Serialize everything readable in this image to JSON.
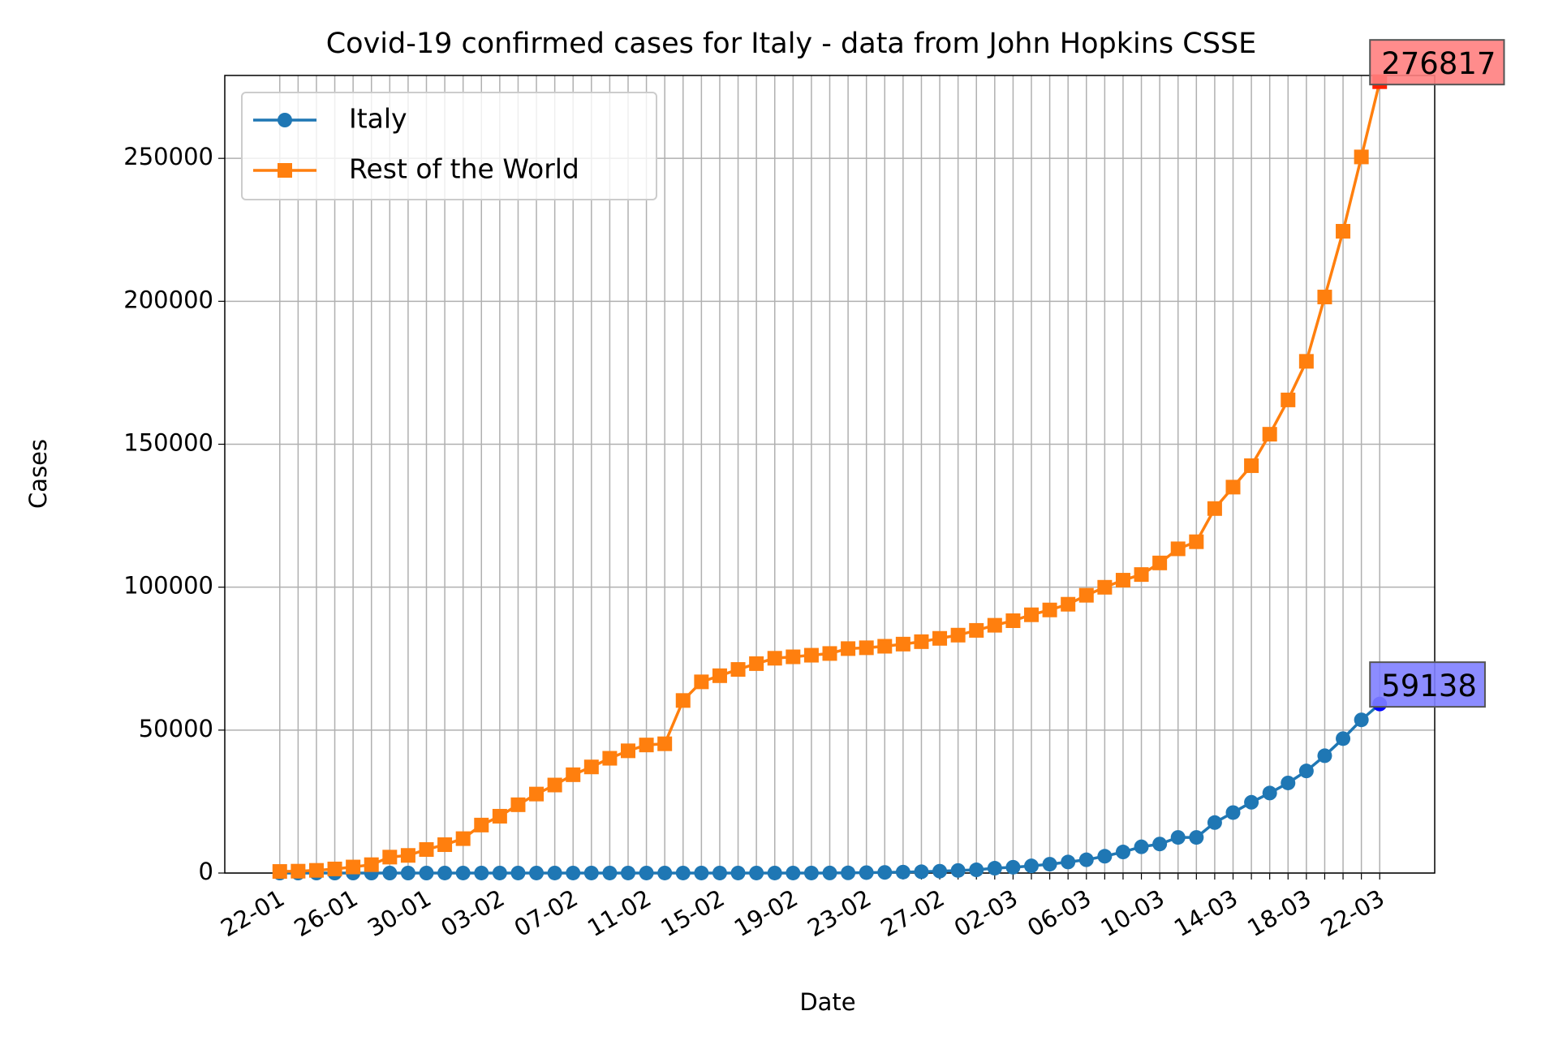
{
  "chart_data": {
    "type": "line",
    "title": "Covid-19 confirmed cases for Italy - data from John Hopkins CSSE",
    "x_label": "Date",
    "y_label": "Cases",
    "categories": [
      "22-01",
      null,
      null,
      null,
      "26-01",
      null,
      null,
      null,
      "30-01",
      null,
      null,
      null,
      "03-02",
      null,
      null,
      null,
      "07-02",
      null,
      null,
      null,
      "11-02",
      null,
      null,
      null,
      "15-02",
      null,
      null,
      null,
      "19-02",
      null,
      null,
      null,
      "23-02",
      null,
      null,
      null,
      "27-02",
      null,
      null,
      null,
      "02-03",
      null,
      null,
      null,
      "06-03",
      null,
      null,
      null,
      "10-03",
      null,
      null,
      null,
      "14-03",
      null,
      null,
      null,
      "18-03",
      null,
      null,
      null,
      "22-03"
    ],
    "series": [
      {
        "name": "Italy",
        "color": "#1f77b4",
        "marker": "circle",
        "highlight_color": "#0000ff",
        "annotation_color": "#8080ff",
        "annotation": 59138,
        "values": [
          0,
          0,
          0,
          0,
          0,
          0,
          0,
          0,
          0,
          2,
          2,
          2,
          2,
          2,
          2,
          2,
          3,
          3,
          3,
          3,
          3,
          3,
          3,
          3,
          3,
          3,
          3,
          3,
          3,
          3,
          20,
          62,
          155,
          229,
          322,
          453,
          655,
          888,
          1128,
          1694,
          2036,
          2502,
          3089,
          3858,
          4636,
          5883,
          7375,
          9172,
          10149,
          12462,
          12462,
          17660,
          21157,
          24747,
          27980,
          31506,
          35713,
          41035,
          47021,
          53578,
          59138
        ]
      },
      {
        "name": "Rest of the World",
        "color": "#ff7f0e",
        "marker": "square",
        "highlight_color": "#ff2000",
        "annotation_color": "#ff8080",
        "annotation": 276817,
        "values": [
          555,
          654,
          941,
          1434,
          2118,
          2927,
          5578,
          6166,
          8234,
          9925,
          12036,
          16785,
          19879,
          23890,
          27633,
          30792,
          34388,
          37117,
          40147,
          42759,
          44799,
          45218,
          60365,
          66882,
          69027,
          71221,
          73255,
          75133,
          75636,
          76194,
          76799,
          78510,
          78803,
          79332,
          80084,
          80935,
          82091,
          83224,
          84883,
          86675,
          88270,
          90338,
          92031,
          94028,
          97165,
          99964,
          102446,
          104418,
          108471,
          113413,
          115890,
          127500,
          135000,
          142500,
          153500,
          165500,
          179000,
          201500,
          224500,
          250500,
          276817
        ]
      }
    ],
    "ylim": [
      0,
      279000
    ],
    "yticks": [
      0,
      50000,
      100000,
      150000,
      200000,
      250000
    ],
    "grid": true,
    "legend": "upper left"
  }
}
